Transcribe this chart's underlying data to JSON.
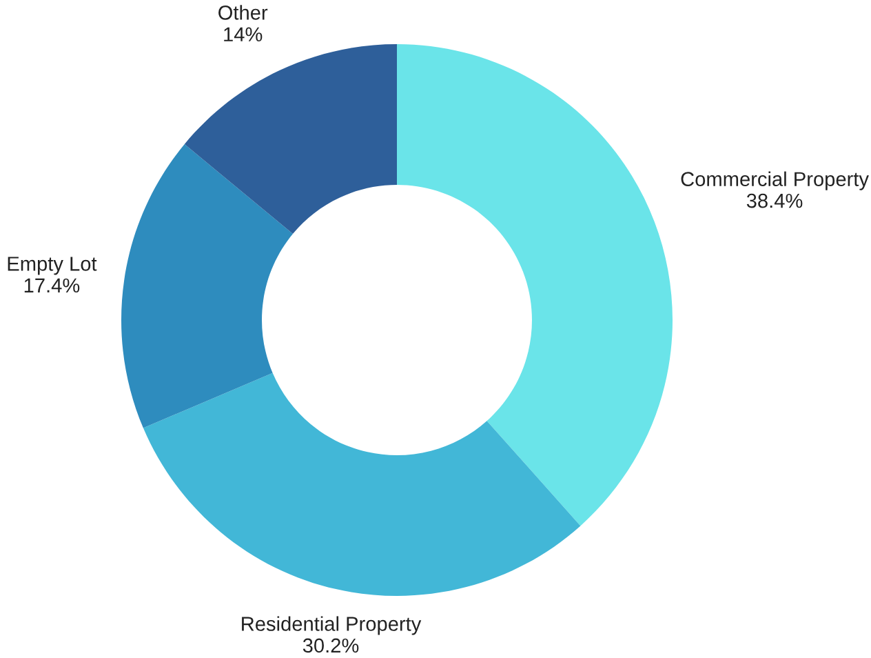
{
  "chart_data": {
    "type": "donut",
    "categories": [
      "Commercial Property",
      "Residential Property",
      "Empty Lot",
      "Other"
    ],
    "values": [
      38.4,
      30.2,
      17.4,
      14
    ],
    "value_labels": [
      "38.4%",
      "30.2%",
      "17.4%",
      "14%"
    ],
    "colors": [
      "#6ae4e9",
      "#42b7d7",
      "#2e8cbe",
      "#2e5f9a"
    ],
    "legend": false
  }
}
